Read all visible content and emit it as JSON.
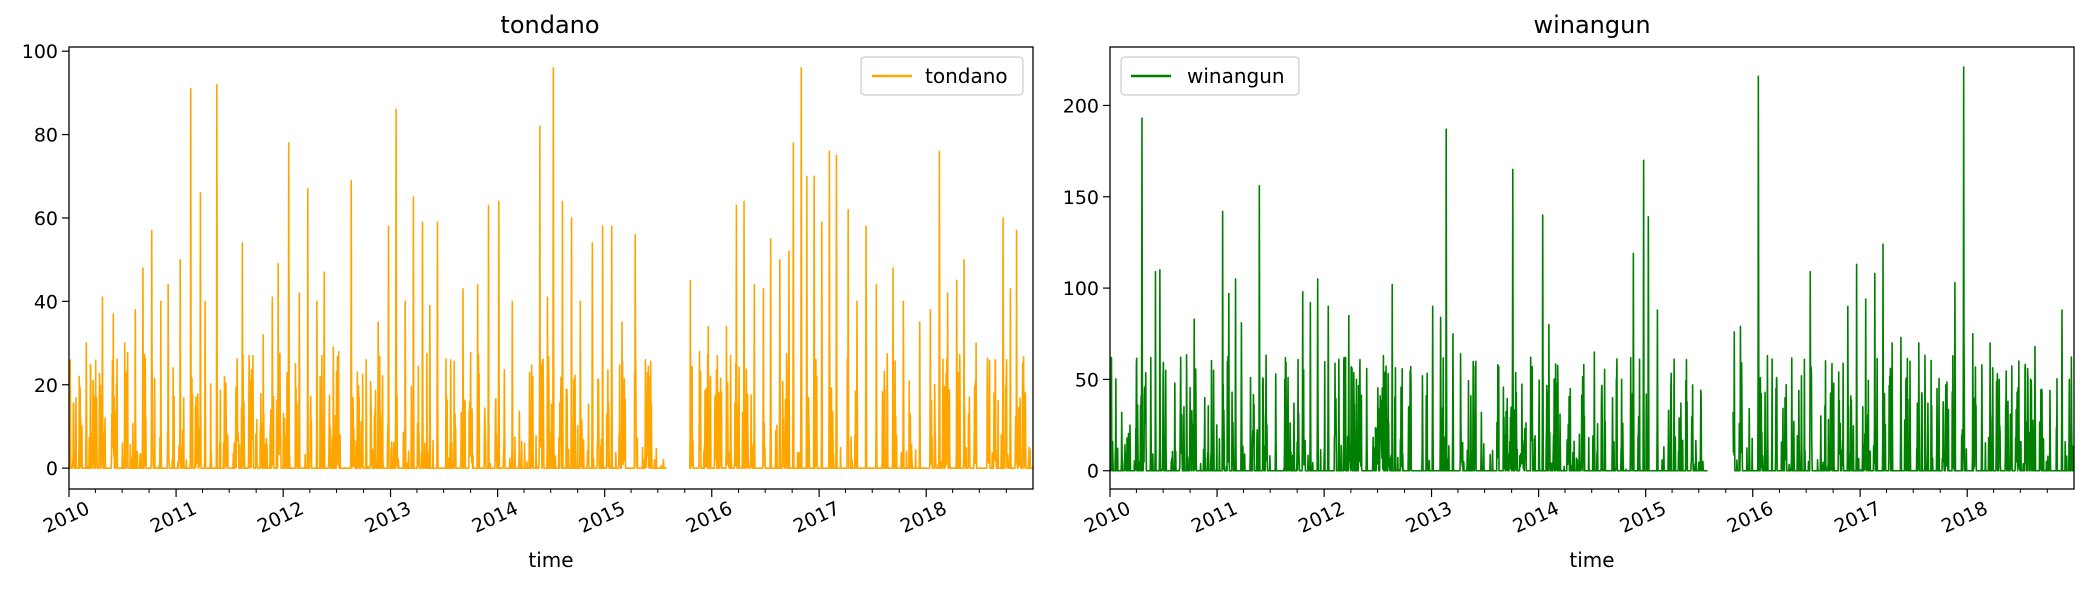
{
  "chart_data": [
    {
      "type": "line",
      "title": "tondano",
      "xlabel": "time",
      "ylabel": "",
      "xlim": [
        "2010-01-01",
        "2018-12-31"
      ],
      "ylim": [
        -5,
        101
      ],
      "yticks": [
        0,
        20,
        40,
        60,
        80,
        100
      ],
      "xticks": [
        "2010",
        "2011",
        "2012",
        "2013",
        "2014",
        "2015",
        "2016",
        "2017",
        "2018"
      ],
      "grid": false,
      "legend_position": "upper-right",
      "series": [
        {
          "name": "tondano",
          "color": "#ffa500",
          "gap": [
            "2015-08-01",
            "2015-10-15"
          ],
          "peaks": [
            [
              "2010-01-05",
              26
            ],
            [
              "2010-02-05",
              22
            ],
            [
              "2010-03-01",
              30
            ],
            [
              "2010-04-05",
              17
            ],
            [
              "2010-04-25",
              41
            ],
            [
              "2010-06-01",
              37
            ],
            [
              "2010-07-10",
              30
            ],
            [
              "2010-08-15",
              38
            ],
            [
              "2010-09-10",
              48
            ],
            [
              "2010-10-10",
              57
            ],
            [
              "2010-11-10",
              40
            ],
            [
              "2010-12-05",
              44
            ],
            [
              "2011-01-15",
              50
            ],
            [
              "2011-02-20",
              91
            ],
            [
              "2011-03-25",
              66
            ],
            [
              "2011-04-10",
              40
            ],
            [
              "2011-05-20",
              92
            ],
            [
              "2011-06-15",
              22
            ],
            [
              "2011-08-15",
              54
            ],
            [
              "2011-09-20",
              27
            ],
            [
              "2011-10-25",
              32
            ],
            [
              "2011-11-25",
              41
            ],
            [
              "2011-12-15",
              49
            ],
            [
              "2012-01-20",
              78
            ],
            [
              "2012-02-25",
              42
            ],
            [
              "2012-03-25",
              67
            ],
            [
              "2012-04-25",
              40
            ],
            [
              "2012-05-20",
              47
            ],
            [
              "2012-06-20",
              29
            ],
            [
              "2012-08-20",
              69
            ],
            [
              "2012-10-10",
              26
            ],
            [
              "2012-11-20",
              35
            ],
            [
              "2012-12-25",
              58
            ],
            [
              "2013-01-20",
              86
            ],
            [
              "2013-02-20",
              40
            ],
            [
              "2013-03-20",
              65
            ],
            [
              "2013-04-20",
              59
            ],
            [
              "2013-05-15",
              39
            ],
            [
              "2013-06-10",
              59
            ],
            [
              "2013-07-25",
              26
            ],
            [
              "2013-09-05",
              43
            ],
            [
              "2013-10-25",
              44
            ],
            [
              "2013-12-01",
              63
            ],
            [
              "2014-01-05",
              64
            ],
            [
              "2014-02-20",
              40
            ],
            [
              "2014-04-20",
              23
            ],
            [
              "2014-05-25",
              82
            ],
            [
              "2014-06-20",
              41
            ],
            [
              "2014-07-10",
              96
            ],
            [
              "2014-08-10",
              64
            ],
            [
              "2014-09-10",
              60
            ],
            [
              "2014-10-10",
              40
            ],
            [
              "2014-11-20",
              54
            ],
            [
              "2014-12-25",
              58
            ],
            [
              "2015-01-25",
              58
            ],
            [
              "2015-03-01",
              35
            ],
            [
              "2015-04-15",
              56
            ],
            [
              "2015-05-20",
              26
            ],
            [
              "2015-06-20",
              2
            ],
            [
              "2015-07-20",
              2
            ],
            [
              "2015-10-20",
              45
            ],
            [
              "2015-11-20",
              28
            ],
            [
              "2015-12-20",
              34
            ],
            [
              "2016-01-20",
              27
            ],
            [
              "2016-02-20",
              34
            ],
            [
              "2016-03-25",
              63
            ],
            [
              "2016-04-20",
              64
            ],
            [
              "2016-05-25",
              44
            ],
            [
              "2016-06-25",
              43
            ],
            [
              "2016-07-20",
              55
            ],
            [
              "2016-08-20",
              50
            ],
            [
              "2016-09-20",
              52
            ],
            [
              "2016-10-05",
              78
            ],
            [
              "2016-11-01",
              96
            ],
            [
              "2016-11-20",
              70
            ],
            [
              "2016-12-15",
              70
            ],
            [
              "2017-01-10",
              59
            ],
            [
              "2017-02-05",
              76
            ],
            [
              "2017-03-01",
              75
            ],
            [
              "2017-04-10",
              62
            ],
            [
              "2017-05-10",
              40
            ],
            [
              "2017-06-10",
              58
            ],
            [
              "2017-07-15",
              44
            ],
            [
              "2017-09-10",
              48
            ],
            [
              "2017-10-15",
              40
            ],
            [
              "2017-12-10",
              35
            ],
            [
              "2018-01-15",
              38
            ],
            [
              "2018-02-15",
              76
            ],
            [
              "2018-03-15",
              42
            ],
            [
              "2018-04-15",
              45
            ],
            [
              "2018-05-10",
              50
            ],
            [
              "2018-06-20",
              30
            ],
            [
              "2018-08-20",
              18
            ],
            [
              "2018-09-20",
              60
            ],
            [
              "2018-10-15",
              43
            ],
            [
              "2018-11-05",
              57
            ],
            [
              "2018-12-05",
              18
            ]
          ]
        }
      ]
    },
    {
      "type": "line",
      "title": "winangun",
      "xlabel": "time",
      "ylabel": "",
      "xlim": [
        "2010-01-01",
        "2018-12-31"
      ],
      "ylim": [
        -10,
        232
      ],
      "yticks": [
        0,
        50,
        100,
        150,
        200
      ],
      "xticks": [
        "2010",
        "2011",
        "2012",
        "2013",
        "2014",
        "2015",
        "2016",
        "2017",
        "2018"
      ],
      "grid": false,
      "legend_position": "upper-left",
      "series": [
        {
          "name": "winangun",
          "color": "#008000",
          "gap": [
            "2015-08-01",
            "2015-10-25"
          ],
          "peaks": [
            [
              "2010-01-10",
              16
            ],
            [
              "2010-02-10",
              32
            ],
            [
              "2010-03-10",
              25
            ],
            [
              "2010-04-05",
              36
            ],
            [
              "2010-04-20",
              193
            ],
            [
              "2010-05-20",
              62
            ],
            [
              "2010-06-05",
              109
            ],
            [
              "2010-06-20",
              110
            ],
            [
              "2010-07-10",
              55
            ],
            [
              "2010-08-10",
              48
            ],
            [
              "2010-09-10",
              35
            ],
            [
              "2010-10-15",
              83
            ],
            [
              "2010-11-20",
              40
            ],
            [
              "2010-12-20",
              55
            ],
            [
              "2011-01-20",
              142
            ],
            [
              "2011-02-10",
              97
            ],
            [
              "2011-03-05",
              105
            ],
            [
              "2011-03-25",
              81
            ],
            [
              "2011-04-25",
              51
            ],
            [
              "2011-05-25",
              156
            ],
            [
              "2011-06-20",
              25
            ],
            [
              "2011-07-20",
              53
            ],
            [
              "2011-08-20",
              50
            ],
            [
              "2011-09-20",
              37
            ],
            [
              "2011-10-20",
              98
            ],
            [
              "2011-11-15",
              92
            ],
            [
              "2011-12-10",
              105
            ],
            [
              "2012-01-15",
              90
            ],
            [
              "2012-02-20",
              61
            ],
            [
              "2012-03-25",
              85
            ],
            [
              "2012-04-20",
              50
            ],
            [
              "2012-05-25",
              56
            ],
            [
              "2012-07-10",
              41
            ],
            [
              "2012-08-20",
              102
            ],
            [
              "2012-10-15",
              35
            ],
            [
              "2012-12-01",
              52
            ],
            [
              "2013-01-05",
              90
            ],
            [
              "2013-02-01",
              84
            ],
            [
              "2013-02-20",
              187
            ],
            [
              "2013-03-15",
              75
            ],
            [
              "2013-04-10",
              64
            ],
            [
              "2013-05-15",
              41
            ],
            [
              "2013-06-20",
              32
            ],
            [
              "2013-08-15",
              58
            ],
            [
              "2013-09-25",
              16
            ],
            [
              "2013-10-05",
              165
            ],
            [
              "2013-11-15",
              23
            ],
            [
              "2013-12-10",
              57
            ],
            [
              "2014-01-15",
              140
            ],
            [
              "2014-02-05",
              80
            ],
            [
              "2014-03-15",
              31
            ],
            [
              "2014-05-20",
              20
            ],
            [
              "2014-07-10",
              65
            ],
            [
              "2014-09-10",
              40
            ],
            [
              "2014-10-15",
              26
            ],
            [
              "2014-11-20",
              119
            ],
            [
              "2014-12-25",
              170
            ],
            [
              "2015-01-10",
              139
            ],
            [
              "2015-02-10",
              88
            ],
            [
              "2015-03-20",
              33
            ],
            [
              "2015-05-01",
              37
            ],
            [
              "2015-06-10",
              47
            ],
            [
              "2015-07-15",
              5
            ],
            [
              "2015-10-30",
              76
            ],
            [
              "2015-11-20",
              79
            ],
            [
              "2015-12-20",
              34
            ],
            [
              "2016-01-20",
              216
            ],
            [
              "2016-02-20",
              63
            ],
            [
              "2016-03-20",
              45
            ],
            [
              "2016-04-20",
              40
            ],
            [
              "2016-05-20",
              27
            ],
            [
              "2016-06-15",
              52
            ],
            [
              "2016-07-15",
              109
            ],
            [
              "2016-08-20",
              30
            ],
            [
              "2016-09-15",
              28
            ],
            [
              "2016-10-20",
              54
            ],
            [
              "2016-11-20",
              90
            ],
            [
              "2016-12-20",
              113
            ],
            [
              "2017-01-20",
              94
            ],
            [
              "2017-02-20",
              108
            ],
            [
              "2017-03-20",
              124
            ],
            [
              "2017-04-20",
              70
            ],
            [
              "2017-05-20",
              73
            ],
            [
              "2017-06-20",
              60
            ],
            [
              "2017-07-20",
              70
            ],
            [
              "2017-08-20",
              37
            ],
            [
              "2017-09-20",
              45
            ],
            [
              "2017-10-20",
              47
            ],
            [
              "2017-11-20",
              103
            ],
            [
              "2017-12-20",
              221
            ],
            [
              "2018-01-20",
              75
            ],
            [
              "2018-02-20",
              58
            ],
            [
              "2018-03-20",
              70
            ],
            [
              "2018-04-20",
              50
            ],
            [
              "2018-05-20",
              38
            ],
            [
              "2018-06-20",
              43
            ],
            [
              "2018-07-20",
              27
            ],
            [
              "2018-08-20",
              68
            ],
            [
              "2018-10-10",
              44
            ],
            [
              "2018-11-20",
              88
            ],
            [
              "2018-12-15",
              50
            ]
          ]
        }
      ]
    }
  ]
}
